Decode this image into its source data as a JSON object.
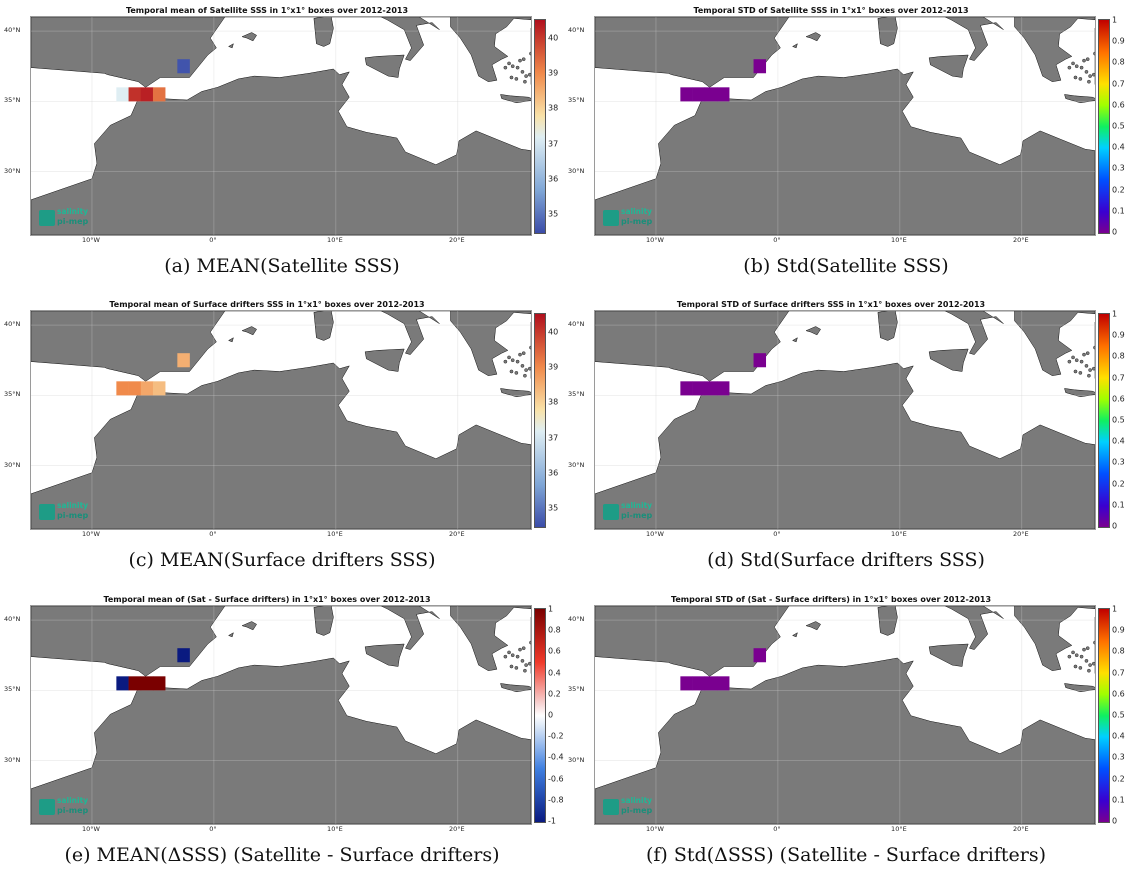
{
  "figure": {
    "panels": [
      {
        "title": "Temporal mean of Satellite SSS in 1°x1° boxes over 2012-2013",
        "caption": "(a) MEAN(Satellite SSS)",
        "colorbar": {
          "scheme": "diverging-salinity",
          "ticks": [
            "40",
            "39",
            "38",
            "37",
            "36",
            "35"
          ],
          "range": [
            34.5,
            40.5
          ]
        },
        "boxes": [
          {
            "lon": -3,
            "lat": 37,
            "value": 34.6
          },
          {
            "lon": -8,
            "lat": 35,
            "value": 37.2
          },
          {
            "lon": -7,
            "lat": 35,
            "value": 40.1
          },
          {
            "lon": -6,
            "lat": 35,
            "value": 40.3
          },
          {
            "lon": -5,
            "lat": 35,
            "value": 39.3
          }
        ]
      },
      {
        "title": "Temporal STD of Satellite SSS in 1°x1° boxes over 2012-2013",
        "caption": "(b) Std(Satellite SSS)",
        "colorbar": {
          "scheme": "jet",
          "ticks": [
            "1",
            "0.9",
            "0.8",
            "0.7",
            "0.6",
            "0.5",
            "0.4",
            "0.3",
            "0.2",
            "0.1",
            "0"
          ],
          "range": [
            0,
            1
          ]
        },
        "boxes": [
          {
            "lon": -2,
            "lat": 37,
            "value": 0.0
          },
          {
            "lon": -8,
            "lat": 35,
            "value": 0.0
          },
          {
            "lon": -7,
            "lat": 35,
            "value": 0.0
          },
          {
            "lon": -6,
            "lat": 35,
            "value": 0.0
          },
          {
            "lon": -5,
            "lat": 35,
            "value": 0.0
          }
        ]
      },
      {
        "title": "Temporal mean of Surface drifters SSS in 1°x1° boxes over 2012-2013",
        "caption": "(c) MEAN(Surface drifters SSS)",
        "colorbar": {
          "scheme": "diverging-salinity",
          "ticks": [
            "40",
            "39",
            "38",
            "37",
            "36",
            "35"
          ],
          "range": [
            34.5,
            40.5
          ]
        },
        "boxes": [
          {
            "lon": -3,
            "lat": 37,
            "value": 38.5
          },
          {
            "lon": -8,
            "lat": 35,
            "value": 39.0
          },
          {
            "lon": -7,
            "lat": 35,
            "value": 39.0
          },
          {
            "lon": -6,
            "lat": 35,
            "value": 38.6
          },
          {
            "lon": -5,
            "lat": 35,
            "value": 38.3
          }
        ]
      },
      {
        "title": "Temporal STD of Surface drifters SSS in 1°x1° boxes over 2012-2013",
        "caption": "(d) Std(Surface drifters SSS)",
        "colorbar": {
          "scheme": "jet",
          "ticks": [
            "1",
            "0.9",
            "0.8",
            "0.7",
            "0.6",
            "0.5",
            "0.4",
            "0.3",
            "0.2",
            "0.1",
            "0"
          ],
          "range": [
            0,
            1
          ]
        },
        "boxes": [
          {
            "lon": -2,
            "lat": 37,
            "value": 0.0
          },
          {
            "lon": -8,
            "lat": 35,
            "value": 0.0
          },
          {
            "lon": -7,
            "lat": 35,
            "value": 0.0
          },
          {
            "lon": -6,
            "lat": 35,
            "value": 0.0
          },
          {
            "lon": -5,
            "lat": 35,
            "value": 0.0
          }
        ]
      },
      {
        "title": "Temporal mean of (Sat - Surface drifters) in 1°x1° boxes over 2012-2013",
        "caption": "(e) MEAN(ΔSSS) (Satellite - Surface drifters)",
        "colorbar": {
          "scheme": "diverging-delta",
          "ticks": [
            "1",
            "0.8",
            "0.6",
            "0.4",
            "0.2",
            "0",
            "-0.2",
            "-0.4",
            "-0.6",
            "-0.8",
            "-1"
          ],
          "range": [
            -1,
            1
          ]
        },
        "boxes": [
          {
            "lon": -3,
            "lat": 37,
            "value": -1.0
          },
          {
            "lon": -8,
            "lat": 35,
            "value": -1.0
          },
          {
            "lon": -7,
            "lat": 35,
            "value": 1.0
          },
          {
            "lon": -6,
            "lat": 35,
            "value": 1.0
          },
          {
            "lon": -5,
            "lat": 35,
            "value": 1.0
          }
        ]
      },
      {
        "title": "Temporal STD of (Sat - Surface drifters) in 1°x1° boxes over 2012-2013",
        "caption": "(f) Std(ΔSSS) (Satellite - Surface drifters)",
        "colorbar": {
          "scheme": "jet",
          "ticks": [
            "1",
            "0.9",
            "0.8",
            "0.7",
            "0.6",
            "0.5",
            "0.4",
            "0.3",
            "0.2",
            "0.1",
            "0"
          ],
          "range": [
            0,
            1
          ]
        },
        "boxes": [
          {
            "lon": -2,
            "lat": 37,
            "value": 0.0
          },
          {
            "lon": -8,
            "lat": 35,
            "value": 0.0
          },
          {
            "lon": -7,
            "lat": 35,
            "value": 0.0
          },
          {
            "lon": -6,
            "lat": 35,
            "value": 0.0
          },
          {
            "lon": -5,
            "lat": 35,
            "value": 0.0
          }
        ]
      }
    ],
    "map": {
      "lat_ticks": [
        "40°N",
        "35°N",
        "30°N"
      ],
      "lon_ticks": [
        "10°W",
        "0°",
        "10°E",
        "20°E"
      ],
      "extent": {
        "lon": [
          -15,
          26
        ],
        "lat": [
          25.5,
          41
        ]
      },
      "land_color": "#7a7a7a",
      "sea_color": "#ffffff"
    },
    "logo": {
      "line1": "salinity",
      "line2": "pi-mep"
    }
  }
}
